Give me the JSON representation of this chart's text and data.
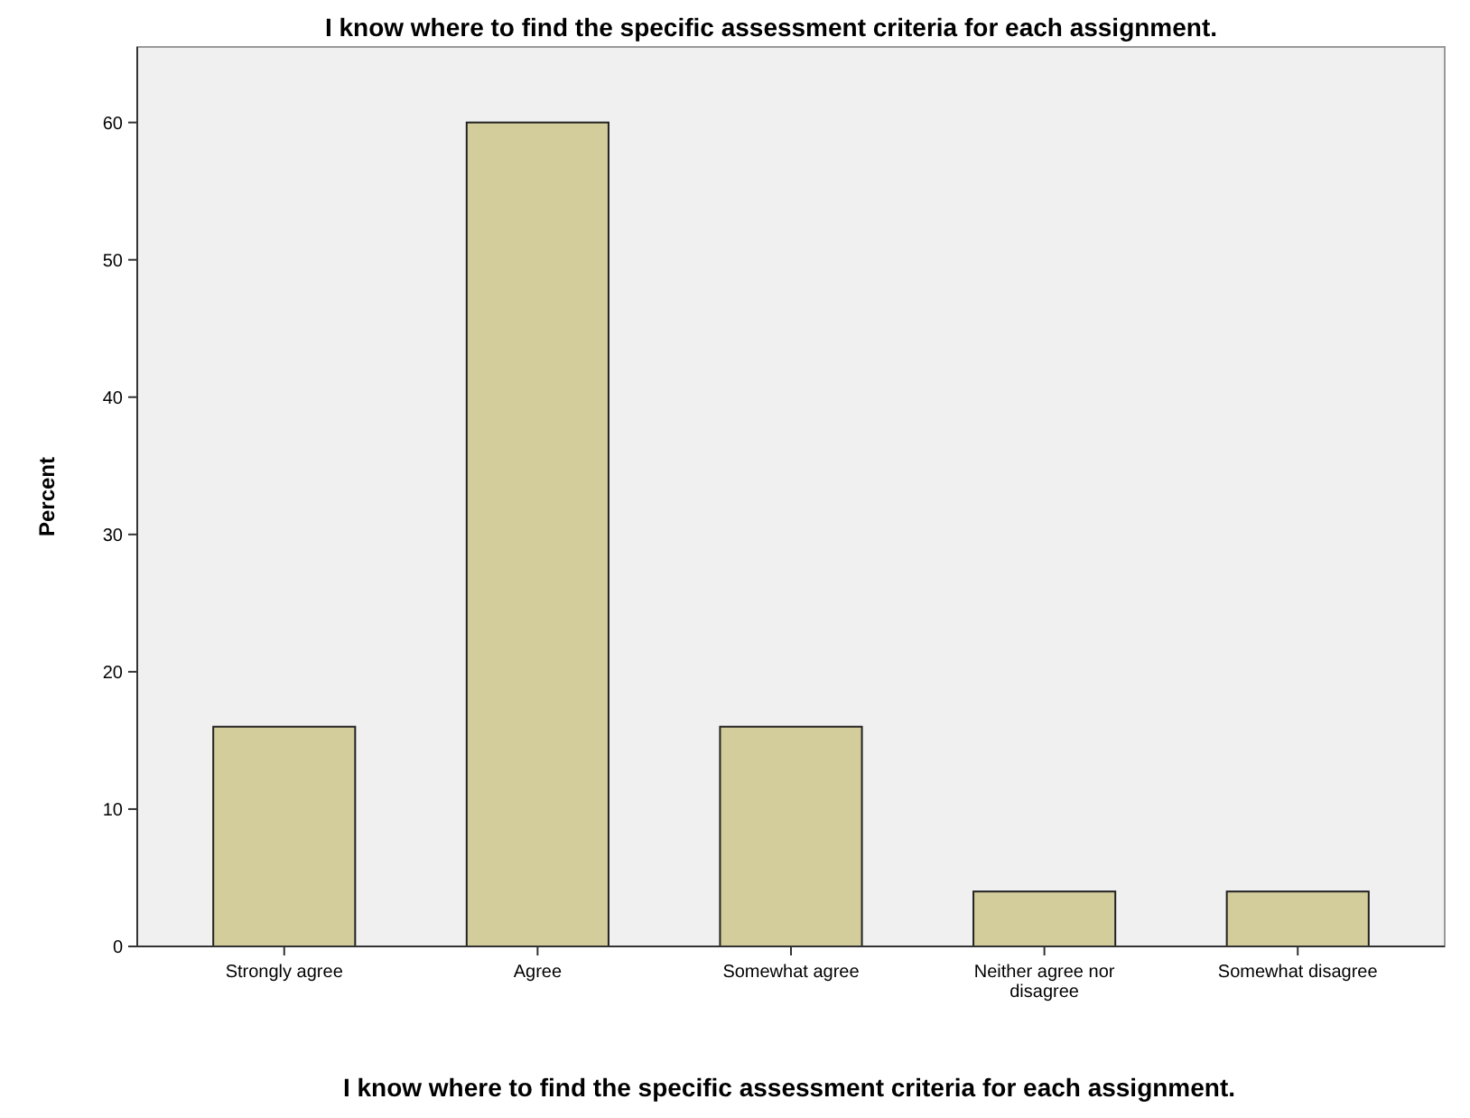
{
  "chart_data": {
    "type": "bar",
    "title": "I know where to find the specific assessment criteria for each assignment.",
    "xlabel": "I know where to find the specific assessment criteria for each assignment.",
    "ylabel": "Percent",
    "categories": [
      "Strongly agree",
      "Agree",
      "Somewhat agree",
      "Neither agree nor disagree",
      "Somewhat disagree"
    ],
    "values": [
      16,
      60,
      16,
      4,
      4
    ],
    "color": "#d3cc9b",
    "ylim": [
      0,
      65.5
    ],
    "yticks": [
      0,
      10,
      20,
      30,
      40,
      50,
      60
    ],
    "grid": false
  }
}
